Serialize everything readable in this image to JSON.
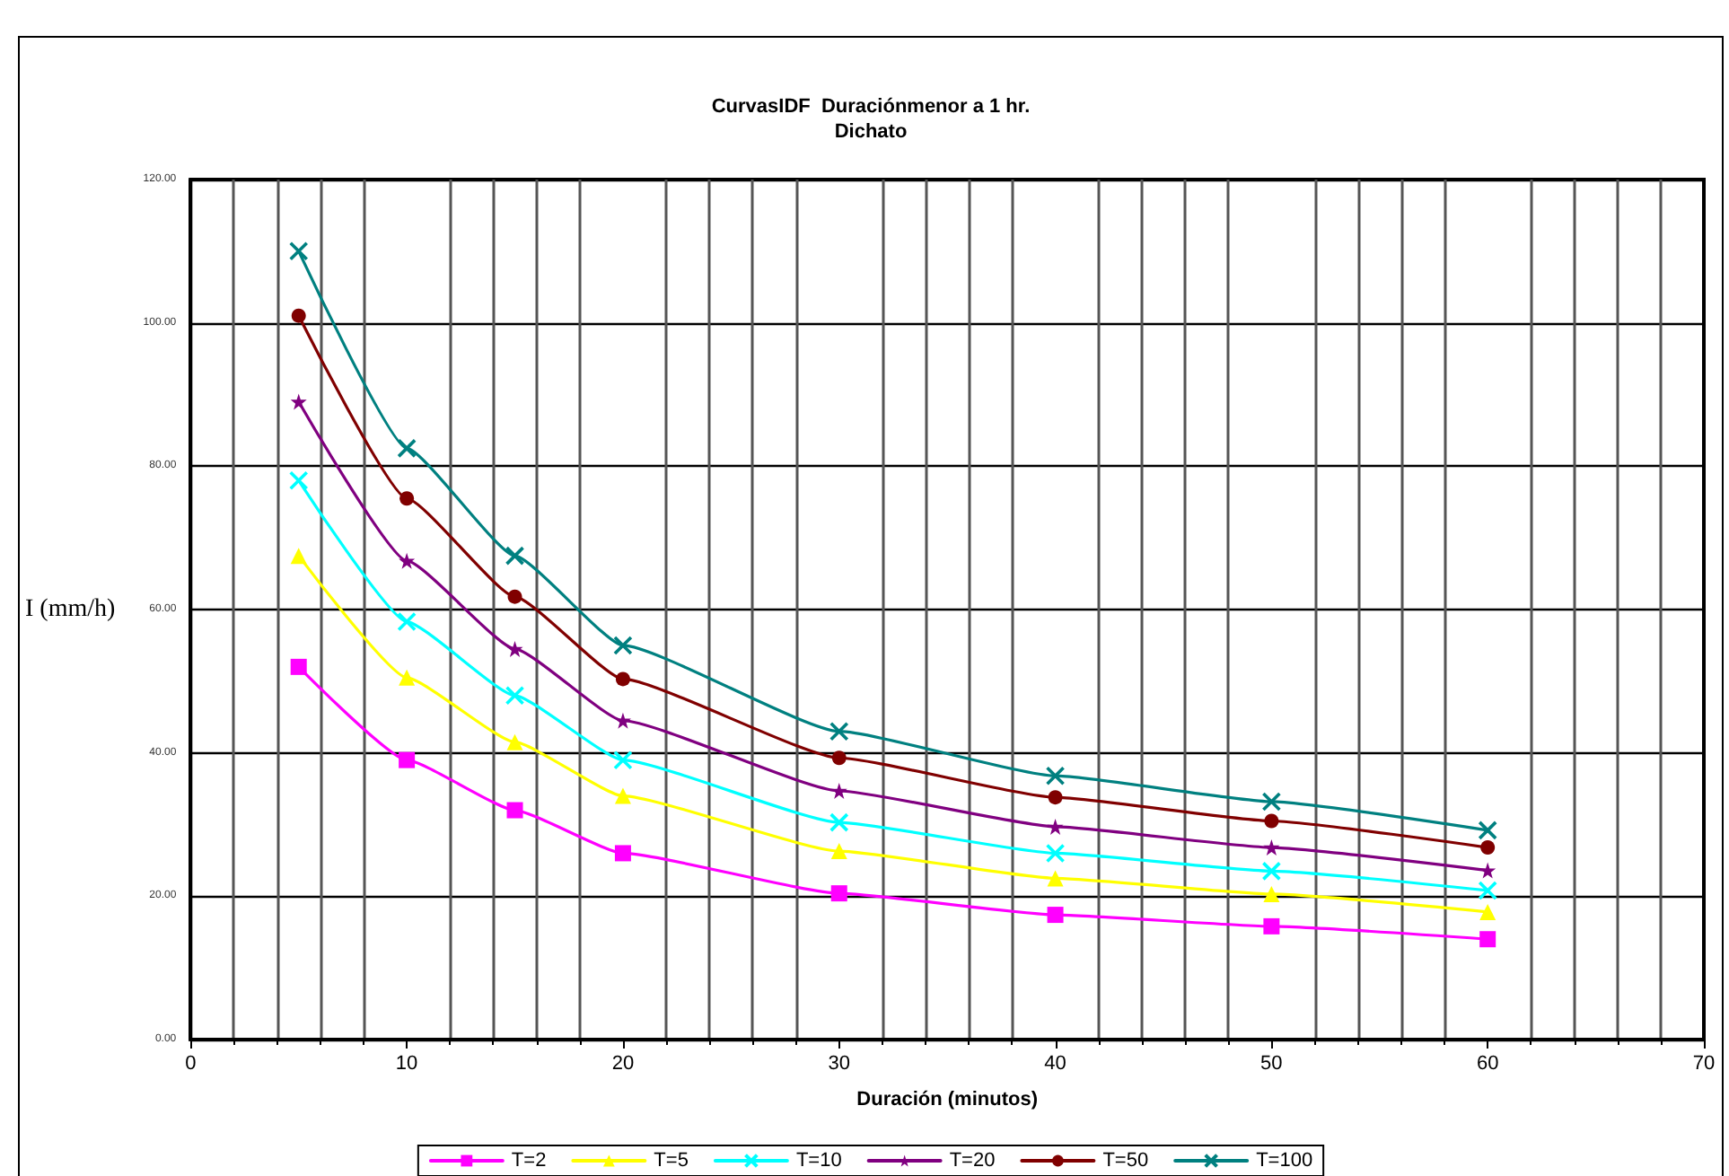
{
  "chart_data": {
    "type": "line",
    "title": "CurvasIDF  Duraciónmenor a 1 hr.",
    "subtitle": "Dichato",
    "xlabel": "Duración (minutos)",
    "ylabel": "I (mm/h)",
    "x": [
      5,
      10,
      15,
      20,
      30,
      40,
      50,
      60
    ],
    "series": [
      {
        "name": "T=2",
        "color": "#ff00ff",
        "marker": "square",
        "values": [
          52,
          39,
          32,
          26,
          20.4,
          17.4,
          15.8,
          14
        ]
      },
      {
        "name": "T=5",
        "color": "#ffff00",
        "marker": "triangle",
        "values": [
          67.5,
          50.5,
          41.5,
          34,
          26.3,
          22.5,
          20.3,
          17.8
        ]
      },
      {
        "name": "T=10",
        "color": "#00ffff",
        "marker": "cross",
        "values": [
          78,
          58.3,
          48,
          39,
          30.3,
          26,
          23.5,
          20.8
        ]
      },
      {
        "name": "T=20",
        "color": "#800080",
        "marker": "star",
        "values": [
          89,
          66.8,
          54.5,
          44.5,
          34.7,
          29.7,
          26.8,
          23.6
        ]
      },
      {
        "name": "T=50",
        "color": "#800000",
        "marker": "circle",
        "values": [
          101,
          75.5,
          61.8,
          50.3,
          39.3,
          33.8,
          30.5,
          26.8
        ]
      },
      {
        "name": "T=100",
        "color": "#008080",
        "marker": "cross",
        "values": [
          110,
          82.5,
          67.5,
          55,
          43,
          36.8,
          33.2,
          29.2
        ]
      }
    ],
    "xlim": [
      0,
      70
    ],
    "xticks": [
      0,
      10,
      20,
      30,
      40,
      50,
      60,
      70
    ],
    "ylim": [
      0,
      120
    ],
    "yticks": [
      {
        "value": 0,
        "label": "0.00"
      },
      {
        "value": 20,
        "label": "20.00"
      },
      {
        "value": 40,
        "label": "40.00"
      },
      {
        "value": 60,
        "label": "60.00"
      },
      {
        "value": 80,
        "label": "80.00"
      },
      {
        "value": 100,
        "label": "100.00"
      },
      {
        "value": 120,
        "label": "120.00"
      }
    ],
    "grid": true,
    "legend": "bottom",
    "line_style": "solid"
  }
}
